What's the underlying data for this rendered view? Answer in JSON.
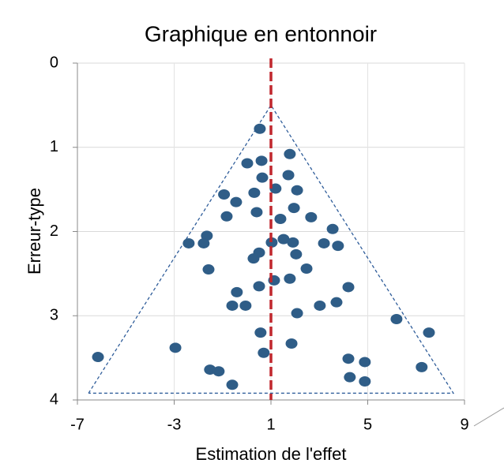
{
  "chart_data": {
    "type": "scatter",
    "title": "Graphique en entonnoir",
    "x_label": "Estimation de l'effet",
    "y_label": "Erreur-type",
    "x": [
      0.54,
      1.78,
      0.61,
      0.02,
      1.72,
      0.64,
      1.19,
      2.08,
      -0.94,
      0.31,
      -0.44,
      1.95,
      0.41,
      -0.83,
      2.66,
      1.39,
      3.55,
      -1.65,
      1.52,
      -2.4,
      -1.78,
      1.03,
      1.91,
      3.19,
      3.77,
      0.51,
      2.04,
      0.28,
      2.47,
      -1.58,
      1.13,
      1.78,
      0.51,
      4.2,
      -0.41,
      -0.6,
      -0.05,
      3.02,
      3.71,
      2.08,
      6.19,
      7.53,
      0.57,
      1.85,
      -2.95,
      0.7,
      -6.15,
      4.2,
      4.88,
      7.23,
      -1.52,
      -1.16,
      4.26,
      4.88,
      -0.6
    ],
    "values": [
      0.78,
      1.08,
      1.16,
      1.19,
      1.33,
      1.36,
      1.49,
      1.51,
      1.56,
      1.54,
      1.65,
      1.72,
      1.77,
      1.82,
      1.83,
      1.85,
      1.97,
      2.05,
      2.09,
      2.14,
      2.14,
      2.13,
      2.13,
      2.14,
      2.17,
      2.25,
      2.27,
      2.32,
      2.44,
      2.45,
      2.58,
      2.56,
      2.65,
      2.66,
      2.72,
      2.88,
      2.88,
      2.88,
      2.84,
      2.97,
      3.04,
      3.2,
      3.2,
      3.33,
      3.38,
      3.44,
      3.49,
      3.51,
      3.55,
      3.61,
      3.64,
      3.66,
      3.73,
      3.78,
      3.82
    ],
    "color": "#2f5d87",
    "reference_line": {
      "x": 1,
      "color": "#c0272d"
    },
    "funnel": {
      "x": [
        -6.54,
        1,
        8.54,
        -6.54
      ],
      "y": [
        3.92,
        0.5,
        3.92,
        3.92
      ],
      "color": "#2f5d9a"
    },
    "xlim": [
      -7,
      9
    ],
    "ylim": [
      4,
      0
    ],
    "xticks": [
      -7,
      -3,
      1,
      5,
      9
    ],
    "yticks": [
      0,
      1,
      2,
      3,
      4
    ],
    "grid": true
  }
}
